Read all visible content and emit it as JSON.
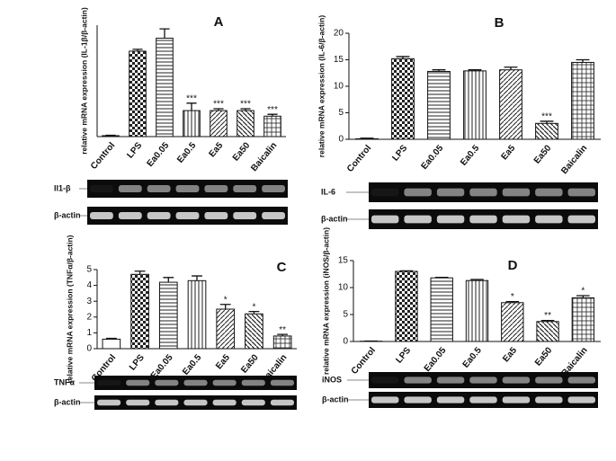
{
  "chart_data": [
    {
      "type": "bar",
      "title": "A",
      "y_label": "relative mRNA expression (IL-1β/β-actin)",
      "categories": [
        "Control",
        "LPS",
        "Ea0.05",
        "Ea0.5",
        "Ea5",
        "Ea50",
        "Baicalin"
      ],
      "values": [
        0.05,
        4.6,
        5.3,
        1.4,
        1.4,
        1.4,
        1.1
      ],
      "errors": [
        0.02,
        0.1,
        0.5,
        0.4,
        0.1,
        0.1,
        0.1
      ],
      "significance": [
        null,
        null,
        null,
        "***",
        "***",
        "***",
        "***"
      ],
      "ylim": [
        0,
        6
      ],
      "blots": [
        "Il1-β",
        "β-actin"
      ]
    },
    {
      "type": "bar",
      "title": "B",
      "y_label": "relative mRNA expression (IL-6/β-actin)",
      "categories": [
        "Control",
        "LPS",
        "Ea0.05",
        "Ea0.5",
        "Ea5",
        "Ea50",
        "Baicalin"
      ],
      "values": [
        0.1,
        15.2,
        12.8,
        12.9,
        13.1,
        3.0,
        14.5
      ],
      "errors": [
        0.1,
        0.4,
        0.3,
        0.2,
        0.5,
        0.4,
        0.5
      ],
      "significance": [
        null,
        null,
        null,
        null,
        null,
        "***",
        null
      ],
      "ylim": [
        0,
        20
      ],
      "yticks": [
        0,
        5,
        10,
        15,
        20
      ],
      "blots": [
        "IL-6",
        "β-actin"
      ]
    },
    {
      "type": "bar",
      "title": "C",
      "y_label": "relative mRNA expression (TNFα/β-actin)",
      "categories": [
        "Control",
        "LPS",
        "Ea0.05",
        "Ea0.5",
        "Ea5",
        "Ea50",
        "Baicalin"
      ],
      "values": [
        0.6,
        4.7,
        4.2,
        4.3,
        2.5,
        2.2,
        0.8
      ],
      "errors": [
        0.05,
        0.2,
        0.3,
        0.3,
        0.3,
        0.15,
        0.1
      ],
      "significance": [
        null,
        null,
        null,
        null,
        "*",
        "*",
        "**"
      ],
      "ylim": [
        0,
        5
      ],
      "yticks": [
        0,
        1,
        2,
        3,
        4,
        5
      ],
      "blots": [
        "TNFα",
        "β-actin"
      ]
    },
    {
      "type": "bar",
      "title": "D",
      "y_label": "relative mRNA expression (iNOS/β-actin)",
      "categories": [
        "Control",
        "LPS",
        "Ea0.05",
        "Ea0.5",
        "Ea5",
        "Ea50",
        "Baicalin"
      ],
      "values": [
        0.05,
        13.0,
        11.8,
        11.3,
        7.2,
        3.7,
        8.1
      ],
      "errors": [
        0.02,
        0.1,
        0.1,
        0.2,
        0.2,
        0.2,
        0.4
      ],
      "significance": [
        null,
        null,
        null,
        null,
        "*",
        "**",
        "*"
      ],
      "ylim": [
        0,
        15
      ],
      "yticks": [
        0,
        5,
        10,
        15
      ],
      "blots": [
        "iNOS",
        "β-actin"
      ]
    }
  ]
}
